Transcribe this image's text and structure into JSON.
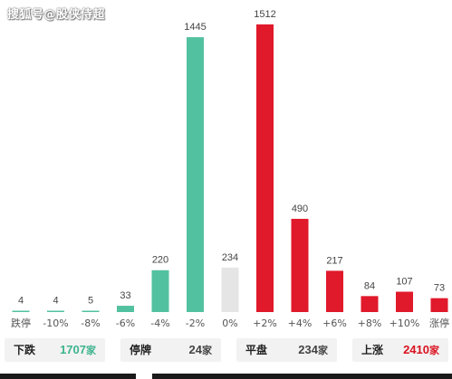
{
  "watermark": "搜狐号@股侠侍超",
  "colors": {
    "down": "#52c1a0",
    "flat": "#e5e5e5",
    "up": "#e0192b",
    "downText": "#3db38d",
    "upText": "#d9121f"
  },
  "chart_data": {
    "type": "bar",
    "categories": [
      "跌停",
      "-10%",
      "-8%",
      "-6%",
      "-4%",
      "-2%",
      "0%",
      "+2%",
      "+4%",
      "+6%",
      "+8%",
      "+10%",
      "涨停"
    ],
    "values": [
      4,
      4,
      5,
      33,
      220,
      1445,
      234,
      1512,
      490,
      217,
      84,
      107,
      73
    ],
    "groups": [
      "down",
      "down",
      "down",
      "down",
      "down",
      "down",
      "flat",
      "up",
      "up",
      "up",
      "up",
      "up",
      "up"
    ]
  },
  "summary": {
    "down": {
      "label": "下跌",
      "count": "1707",
      "unit": "家"
    },
    "halt": {
      "label": "停牌",
      "count": "24",
      "unit": "家"
    },
    "flat": {
      "label": "平盘",
      "count": "234",
      "unit": "家"
    },
    "up": {
      "label": "上涨",
      "count": "2410",
      "unit": "家"
    }
  }
}
